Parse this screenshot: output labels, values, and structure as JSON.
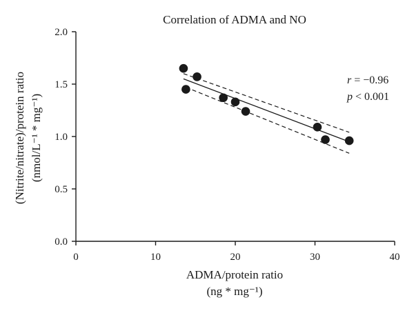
{
  "chart_data": {
    "type": "scatter",
    "title": "Correlation of ADMA and NO",
    "xlabel": "ADMA/protein ratio",
    "xlabel_unit": "(ng * mg⁻¹)",
    "ylabel": "(Nitrite/nitrate)/protein ratio",
    "ylabel_unit": "(nmol/L⁻¹ * mg⁻¹)",
    "xlim": [
      0,
      40
    ],
    "ylim": [
      0.0,
      2.0
    ],
    "xticks": [
      0,
      10,
      20,
      30,
      40
    ],
    "xtick_labels": [
      "0",
      "10",
      "20",
      "30",
      "40"
    ],
    "yticks": [
      0.0,
      0.5,
      1.0,
      1.5,
      2.0
    ],
    "ytick_labels": [
      "0.0",
      "0.5",
      "1.0",
      "1.5",
      "2.0"
    ],
    "grid": false,
    "points": [
      {
        "x": 13.5,
        "y": 1.65
      },
      {
        "x": 13.8,
        "y": 1.45
      },
      {
        "x": 15.2,
        "y": 1.57
      },
      {
        "x": 18.5,
        "y": 1.37
      },
      {
        "x": 20.0,
        "y": 1.33
      },
      {
        "x": 21.3,
        "y": 1.24
      },
      {
        "x": 30.3,
        "y": 1.09
      },
      {
        "x": 31.3,
        "y": 0.97
      },
      {
        "x": 34.3,
        "y": 0.96
      }
    ],
    "fit_line": {
      "x": [
        13.5,
        34.3
      ],
      "y": [
        1.55,
        0.95
      ]
    },
    "ci_upper": {
      "x": [
        13.5,
        34.3
      ],
      "y": [
        1.6,
        1.04
      ]
    },
    "ci_lower": {
      "x": [
        13.8,
        34.3
      ],
      "y": [
        1.47,
        0.84
      ]
    },
    "annotations": {
      "r_symbol": "r",
      "r_value": " = −0.96",
      "p_symbol": "p",
      "p_value": " < 0.001"
    }
  }
}
